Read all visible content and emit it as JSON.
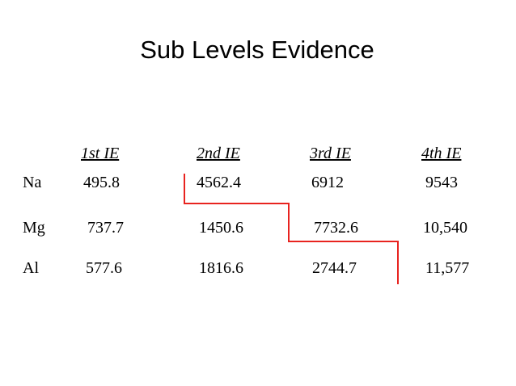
{
  "header": {
    "title": "Sub Levels Evidence"
  },
  "table": {
    "columns": [
      "1st IE",
      "2nd IE",
      "3rd IE",
      "4th IE"
    ],
    "rows": [
      [
        "Na",
        "495.8",
        "4562.4",
        "6912",
        "9543"
      ],
      [
        "Mg",
        "737.7",
        "1450.6",
        "7732.6",
        "10,540"
      ],
      [
        "Al",
        "577.6",
        "1816.6",
        "2744.7",
        "11,577"
      ]
    ]
  }
}
